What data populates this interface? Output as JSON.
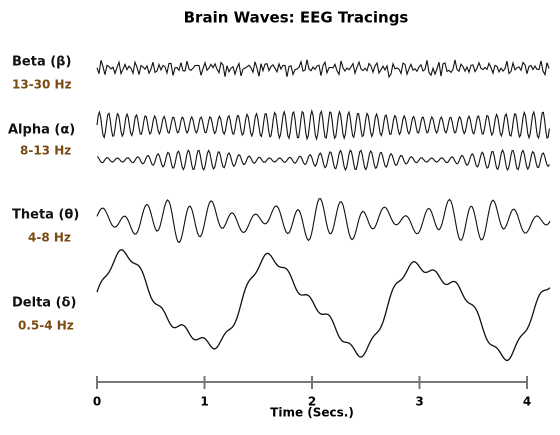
{
  "title": "Brain Waves: EEG Tracings",
  "waves": [
    {
      "name": "Beta (β)",
      "range": "13-30 Hz"
    },
    {
      "name": "Alpha (α)",
      "range": "8-13 Hz"
    },
    {
      "name": "Theta (θ)",
      "range": "4-8 Hz"
    },
    {
      "name": "Delta (δ)",
      "range": "0.5-4 Hz"
    }
  ],
  "axis": {
    "label": "Time (Secs.)",
    "lim": [
      0,
      4
    ],
    "ticks": [
      0,
      1,
      2,
      3,
      4
    ]
  }
}
